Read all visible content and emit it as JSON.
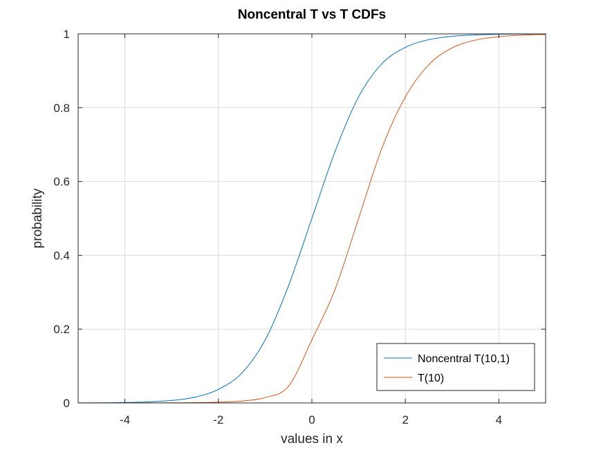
{
  "chart_data": {
    "type": "line",
    "title": "Noncentral T vs T CDFs",
    "xlabel": "values in x",
    "ylabel": "probability",
    "xlim": [
      -5,
      5
    ],
    "ylim": [
      0,
      1
    ],
    "xticks": [
      -4,
      -2,
      0,
      2,
      4
    ],
    "yticks": [
      0,
      0.2,
      0.4,
      0.6,
      0.8,
      1
    ],
    "xtick_labels": [
      "-4",
      "-2",
      "0",
      "2",
      "4"
    ],
    "ytick_labels": [
      "0",
      "0.2",
      "0.4",
      "0.6",
      "0.8",
      "1"
    ],
    "grid": true,
    "legend_position": "bottom-right",
    "x": [
      -5,
      -4.5,
      -4,
      -3.5,
      -3,
      -2.5,
      -2,
      -1.5,
      -1,
      -0.5,
      0,
      0.5,
      1,
      1.5,
      2,
      2.5,
      3,
      3.5,
      4,
      4.5,
      5
    ],
    "series": [
      {
        "name": "Noncentral T(10,1)",
        "color": "#0072bd",
        "values": [
          0.0003,
          0.0005,
          0.0012,
          0.0028,
          0.0067,
          0.0157,
          0.0367,
          0.0807,
          0.1705,
          0.3174,
          0.5,
          0.6826,
          0.8295,
          0.9193,
          0.9633,
          0.9843,
          0.9933,
          0.9972,
          0.9988,
          0.9995,
          0.9997
        ]
      },
      {
        "name": "T(10)",
        "color": "#d95319",
        "values": [
          0,
          0.0001,
          0.0001,
          0.0002,
          0.0004,
          0.0009,
          0.0021,
          0.0052,
          0.0146,
          0.0452,
          0.1707,
          0.3091,
          0.5,
          0.6909,
          0.8293,
          0.9163,
          0.9619,
          0.9832,
          0.9926,
          0.9966,
          0.9984
        ]
      }
    ]
  }
}
